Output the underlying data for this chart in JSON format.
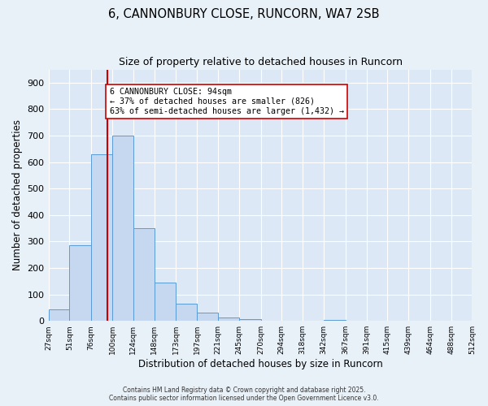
{
  "title": "6, CANNONBURY CLOSE, RUNCORN, WA7 2SB",
  "subtitle": "Size of property relative to detached houses in Runcorn",
  "xlabel": "Distribution of detached houses by size in Runcorn",
  "ylabel": "Number of detached properties",
  "bar_values": [
    43,
    285,
    630,
    700,
    350,
    145,
    65,
    30,
    12,
    8,
    0,
    0,
    0,
    5,
    0,
    0,
    0,
    0,
    0,
    0
  ],
  "bin_labels": [
    "27sqm",
    "51sqm",
    "76sqm",
    "100sqm",
    "124sqm",
    "148sqm",
    "173sqm",
    "197sqm",
    "221sqm",
    "245sqm",
    "270sqm",
    "294sqm",
    "318sqm",
    "342sqm",
    "367sqm",
    "391sqm",
    "415sqm",
    "439sqm",
    "464sqm",
    "488sqm",
    "512sqm"
  ],
  "bar_color": "#c5d8f0",
  "bar_edge_color": "#5b9bd5",
  "vline_x": 94,
  "bin_edges": [
    27,
    51,
    76,
    100,
    124,
    148,
    173,
    197,
    221,
    245,
    270,
    294,
    318,
    342,
    367,
    391,
    415,
    439,
    464,
    488,
    512
  ],
  "ylim": [
    0,
    950
  ],
  "yticks": [
    0,
    100,
    200,
    300,
    400,
    500,
    600,
    700,
    800,
    900
  ],
  "annotation_title": "6 CANNONBURY CLOSE: 94sqm",
  "annotation_line1": "← 37% of detached houses are smaller (826)",
  "annotation_line2": "63% of semi-detached houses are larger (1,432) →",
  "vline_color": "#cc0000",
  "bg_color": "#e8f0f8",
  "plot_bg": "#dce8f5",
  "footer1": "Contains HM Land Registry data © Crown copyright and database right 2025.",
  "footer2": "Contains public sector information licensed under the Open Government Licence v3.0."
}
